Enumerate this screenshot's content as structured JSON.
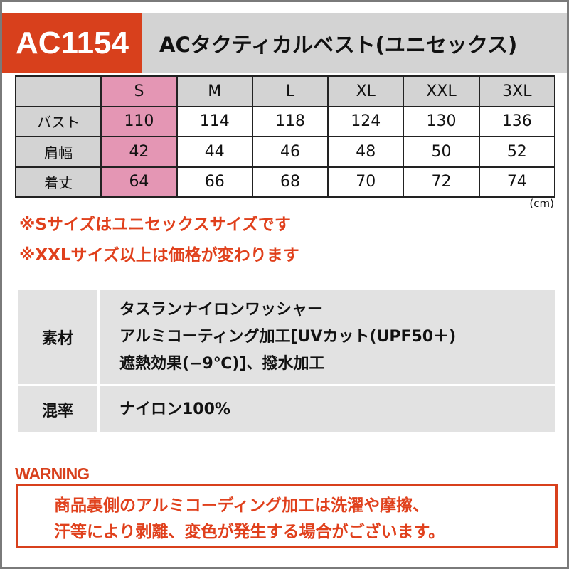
{
  "header": {
    "code": "AC1154",
    "title": "ACタクティカルベスト(ユニセックス)"
  },
  "size_table": {
    "columns": [
      "S",
      "M",
      "L",
      "XL",
      "XXL",
      "3XL"
    ],
    "highlight_column": "S",
    "rows": [
      {
        "label": "バスト",
        "values": [
          "110",
          "114",
          "118",
          "124",
          "130",
          "136"
        ]
      },
      {
        "label": "肩幅",
        "values": [
          "42",
          "44",
          "46",
          "48",
          "50",
          "52"
        ]
      },
      {
        "label": "着丈",
        "values": [
          "64",
          "66",
          "68",
          "70",
          "72",
          "74"
        ]
      }
    ],
    "unit": "(cm)"
  },
  "notes": [
    "※Sサイズはユニセックスサイズです",
    "※XXLサイズ以上は価格が変わります"
  ],
  "material": [
    {
      "label": "素材",
      "lines": [
        "タスランナイロンワッシャー",
        "アルミコーティング加工[UVカット(UPF50＋)",
        "遮熱効果(−9℃)]、撥水加工"
      ]
    },
    {
      "label": "混率",
      "lines": [
        "ナイロン100%"
      ]
    }
  ],
  "warning": {
    "title": "WARNING",
    "lines": [
      "商品裏側のアルミコーディング加工は洗濯や摩擦、",
      "汗等により剥離、変色が発生する場合がございます。"
    ]
  },
  "colors": {
    "accent": "#d8401c",
    "highlight": "#e496b4",
    "gray": "#d3d3d3"
  }
}
